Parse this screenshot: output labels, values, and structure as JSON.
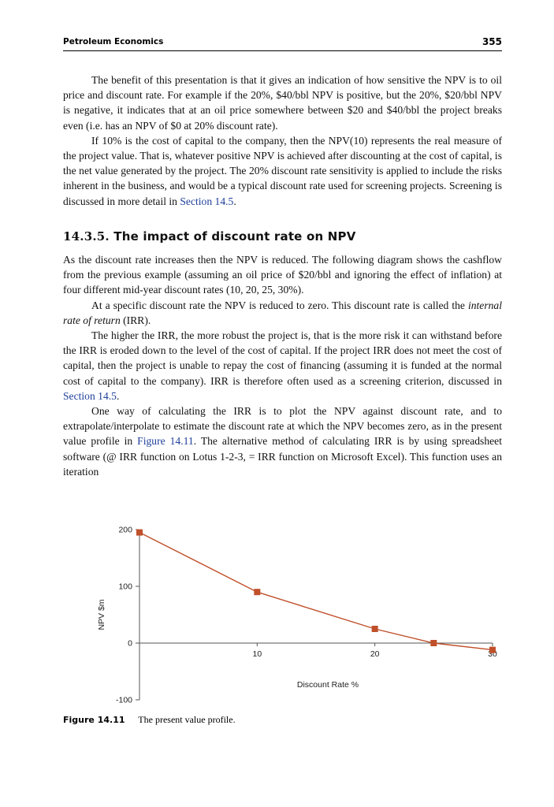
{
  "header": {
    "left": "Petroleum Economics",
    "page_number": "355"
  },
  "paragraphs_a": [
    "The benefit of this presentation is that it gives an indication of how sensitive the NPV is to oil price and discount rate. For example if the 20%, $40/bbl NPV is positive, but the 20%, $20/bbl NPV is negative, it indicates that at an oil price somewhere between $20 and $40/bbl the project breaks even (i.e. has an NPV of $0 at 20% discount rate).",
    "If 10% is the cost of capital to the company, then the NPV(10) represents the real measure of the project value. That is, whatever positive NPV is achieved after discounting at the cost of capital, is the net value generated by the project. The 20% discount rate sensitivity is applied to include the risks inherent in the business, and would be a typical discount rate used for screening projects. Screening is discussed in more detail in "
  ],
  "para2_link": "Section 14.5",
  "para2_end": ".",
  "section": {
    "number": "14.3.5.",
    "title": "The impact of discount rate on NPV"
  },
  "p3": "As the discount rate increases then the NPV is reduced. The following diagram shows the cashflow from the previous example (assuming an oil price of $20/bbl and ignoring the effect of inflation) at four different mid-year discount rates (10, 20, 25, 30%).",
  "p4_a": "At a specific discount rate the NPV is reduced to zero. This discount rate is called the ",
  "p4_em": "internal rate of return",
  "p4_b": " (IRR).",
  "p5_a": "The higher the IRR, the more robust the project is, that is the more risk it can withstand before the IRR is eroded down to the level of the cost of capital. If the project IRR does not meet the cost of capital, then the project is unable to repay the cost of financing (assuming it is funded at the normal cost of capital to the company). IRR is therefore often used as a screening criterion, discussed in ",
  "p5_link": "Section 14.5",
  "p5_b": ".",
  "p6_a": "One way of calculating the IRR is to plot the NPV against discount rate, and to extrapolate/interpolate to estimate the discount rate at which the NPV becomes zero, as in the present value profile in ",
  "p6_link": "Figure 14.11",
  "p6_b": ". The alternative method of calculating IRR is by using spreadsheet software (@ IRR function on Lotus 1-2-3, = IRR function on Microsoft Excel). This function uses an iteration",
  "caption": {
    "label": "Figure 14.11",
    "text": "The present value profile."
  },
  "chart_data": {
    "type": "line",
    "x": [
      0,
      10,
      20,
      25,
      30
    ],
    "y": [
      195,
      90,
      25,
      0,
      -12
    ],
    "xlabel": "Discount Rate %",
    "ylabel": "NPV $m",
    "xlim": [
      0,
      30
    ],
    "ylim": [
      -100,
      200
    ],
    "x_ticks": [
      "10",
      "20",
      "30"
    ],
    "y_ticks": [
      "200",
      "100",
      "0",
      "-100"
    ],
    "line_color": "#c0502a",
    "marker_color": "#c0502a",
    "grid": false
  }
}
